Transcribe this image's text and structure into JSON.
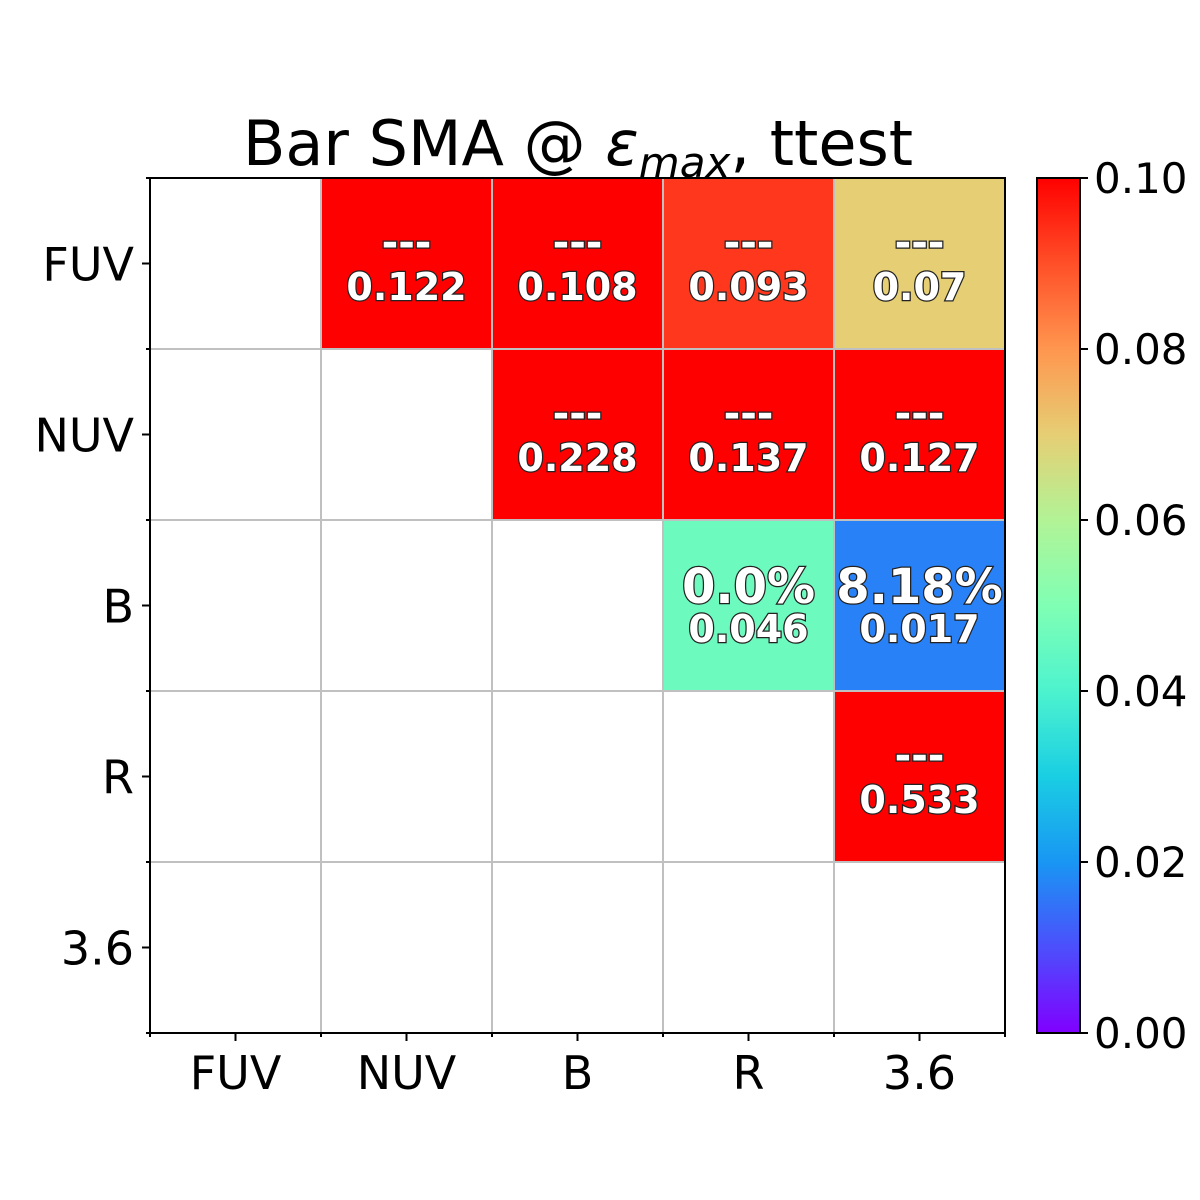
{
  "chart_data": {
    "type": "heatmap",
    "title": "Bar SMA @ εmax, ttest",
    "title_main": "Bar SMA @ ",
    "title_symbol": "ε",
    "title_subscript": "max",
    "title_suffix": ", ttest",
    "x_categories": [
      "FUV",
      "NUV",
      "B",
      "R",
      "3.6"
    ],
    "y_categories": [
      "FUV",
      "NUV",
      "B",
      "R",
      "3.6"
    ],
    "colorscale": "rainbow",
    "vmin": 0.0,
    "vmax": 0.1,
    "colorbar_ticks": [
      "0.00",
      "0.02",
      "0.04",
      "0.06",
      "0.08",
      "0.10"
    ],
    "cells": [
      {
        "row": 0,
        "col": 1,
        "value": 0.122,
        "top_label": "---",
        "bottom_label": "0.122"
      },
      {
        "row": 0,
        "col": 2,
        "value": 0.108,
        "top_label": "---",
        "bottom_label": "0.108"
      },
      {
        "row": 0,
        "col": 3,
        "value": 0.093,
        "top_label": "---",
        "bottom_label": "0.093"
      },
      {
        "row": 0,
        "col": 4,
        "value": 0.07,
        "top_label": "---",
        "bottom_label": "0.07"
      },
      {
        "row": 1,
        "col": 2,
        "value": 0.228,
        "top_label": "---",
        "bottom_label": "0.228"
      },
      {
        "row": 1,
        "col": 3,
        "value": 0.137,
        "top_label": "---",
        "bottom_label": "0.137"
      },
      {
        "row": 1,
        "col": 4,
        "value": 0.127,
        "top_label": "---",
        "bottom_label": "0.127"
      },
      {
        "row": 2,
        "col": 3,
        "value": 0.046,
        "top_label": "0.0%",
        "bottom_label": "0.046"
      },
      {
        "row": 2,
        "col": 4,
        "value": 0.017,
        "top_label": "8.18%",
        "bottom_label": "0.017"
      },
      {
        "row": 3,
        "col": 4,
        "value": 0.533,
        "top_label": "---",
        "bottom_label": "0.533"
      }
    ],
    "grid": true
  },
  "colors": {
    "grid_line": "#c0c0c0",
    "axis": "#000000"
  }
}
